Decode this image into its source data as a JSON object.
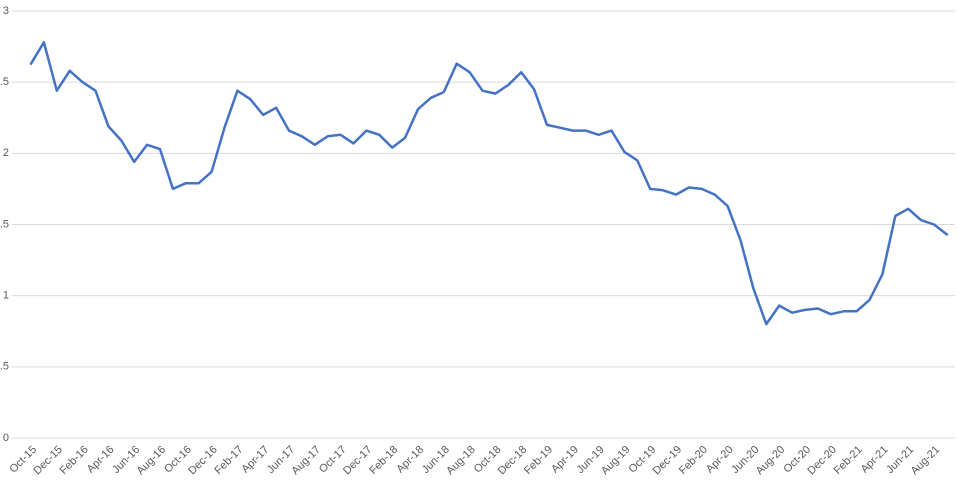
{
  "chart_data": {
    "type": "line",
    "categories": [
      "Oct-15",
      null,
      "Dec-15",
      null,
      "Feb-16",
      null,
      "Apr-16",
      null,
      "Jun-16",
      null,
      "Aug-16",
      null,
      "Oct-16",
      null,
      "Dec-16",
      null,
      "Feb-17",
      null,
      "Apr-17",
      null,
      "Jun-17",
      null,
      "Aug-17",
      null,
      "Oct-17",
      null,
      "Dec-17",
      null,
      "Feb-18",
      null,
      "Apr-18",
      null,
      "Jun-18",
      null,
      "Aug-18",
      null,
      "Oct-18",
      null,
      "Dec-18",
      null,
      "Feb-19",
      null,
      "Apr-19",
      null,
      "Jun-19",
      null,
      "Aug-19",
      null,
      "Oct-19",
      null,
      "Dec-19",
      null,
      "Feb-20",
      null,
      "Apr-20",
      null,
      "Jun-20",
      null,
      "Aug-20",
      null,
      "Oct-20",
      null,
      "Dec-20",
      null,
      "Feb-21",
      null,
      "Apr-21",
      null,
      "Jun-21",
      null,
      "Aug-21",
      null
    ],
    "values": [
      2.63,
      2.78,
      2.44,
      2.58,
      2.5,
      2.44,
      2.19,
      2.09,
      1.94,
      2.06,
      2.03,
      1.75,
      1.79,
      1.79,
      1.87,
      2.18,
      2.44,
      2.38,
      2.27,
      2.32,
      2.16,
      2.12,
      2.06,
      2.12,
      2.13,
      2.07,
      2.16,
      2.13,
      2.04,
      2.11,
      2.31,
      2.39,
      2.43,
      2.63,
      2.57,
      2.44,
      2.42,
      2.48,
      2.57,
      2.45,
      2.2,
      2.18,
      2.16,
      2.16,
      2.13,
      2.16,
      2.01,
      1.95,
      1.75,
      1.74,
      1.71,
      1.76,
      1.75,
      1.71,
      1.63,
      1.39,
      1.05,
      0.8,
      0.93,
      0.88,
      0.9,
      0.91,
      0.87,
      0.89,
      0.89,
      0.97,
      1.15,
      1.56,
      1.61,
      1.53,
      1.5,
      1.43
    ],
    "color": "#4472c4",
    "ylim": [
      0,
      3
    ],
    "yticks": [
      0,
      0.5,
      1,
      1.5,
      2,
      2.5,
      3
    ],
    "grid": true
  }
}
